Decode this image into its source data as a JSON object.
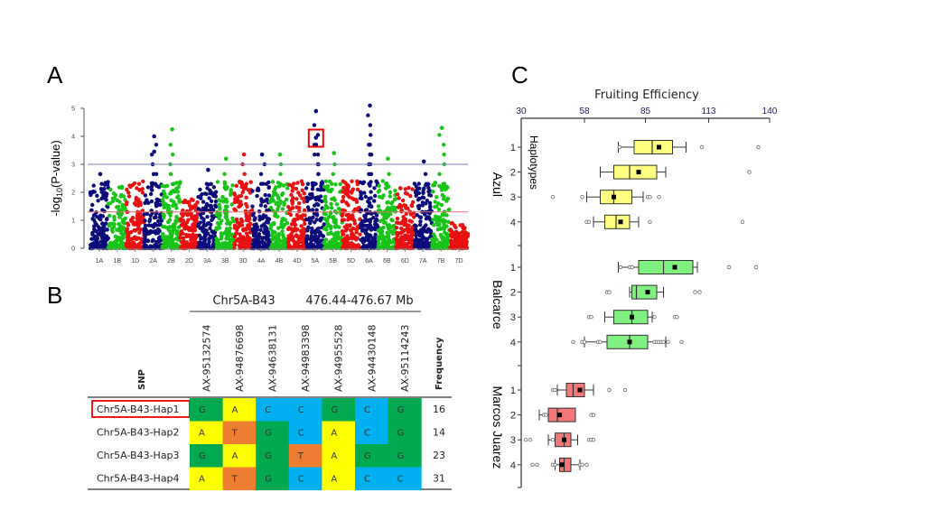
{
  "panels": {
    "a": "A",
    "b": "B",
    "c": "C"
  },
  "chart_data": [
    {
      "type": "scatter",
      "subtype": "manhattan",
      "title": "",
      "ylabel": "-log10(P-value)",
      "ylabel_main": "-log",
      "ylabel_sub": "10",
      "ylabel_rest": "(P-value)",
      "xlabel": "",
      "ylim": [
        0,
        5
      ],
      "yticks": [
        "0",
        "1",
        "2",
        "3",
        "4",
        "5"
      ],
      "categories": [
        "1A",
        "1B",
        "1D",
        "2A",
        "2B",
        "2D",
        "3A",
        "3B",
        "3D",
        "4A",
        "4B",
        "4D",
        "5A",
        "5B",
        "5D",
        "6A",
        "6B",
        "6D",
        "7A",
        "7B",
        "7D"
      ],
      "thresholds": [
        {
          "value": 3.0,
          "color": "#7f7fbf"
        },
        {
          "value": 1.3,
          "color": "#d87070"
        }
      ],
      "colors": {
        "A": "#0b0b7a",
        "B": "#19c419",
        "D": "#e81010"
      },
      "peak_max": [
        2.65,
        2.35,
        2.75,
        3.95,
        4.25,
        1.8,
        2.8,
        3.2,
        3.3,
        3.35,
        3.35,
        2.5,
        4.9,
        3.4,
        2.5,
        5.1,
        3.2,
        2.2,
        3.1,
        4.3,
        0.9
      ],
      "highlighted_point": {
        "chromosome": "5A",
        "value": 3.95
      },
      "top_points": [
        {
          "chromosome": "1A",
          "value": 2.65
        },
        {
          "chromosome": "2A",
          "value": 3.45
        },
        {
          "chromosome": "2A",
          "value": 4.0
        },
        {
          "chromosome": "2B",
          "value": 4.25
        },
        {
          "chromosome": "3A",
          "value": 2.8
        },
        {
          "chromosome": "3B",
          "value": 3.2
        },
        {
          "chromosome": "3D",
          "value": 3.35
        },
        {
          "chromosome": "4A",
          "value": 3.35
        },
        {
          "chromosome": "4B",
          "value": 3.35
        },
        {
          "chromosome": "5A",
          "value": 4.9
        },
        {
          "chromosome": "5A",
          "value": 3.95
        },
        {
          "chromosome": "5B",
          "value": 3.4
        },
        {
          "chromosome": "6A",
          "value": 5.1
        },
        {
          "chromosome": "6A",
          "value": 3.7
        },
        {
          "chromosome": "6B",
          "value": 3.2
        },
        {
          "chromosome": "7A",
          "value": 3.1
        },
        {
          "chromosome": "7B",
          "value": 4.3
        }
      ]
    },
    {
      "type": "table",
      "region_label": "Chr5A-B43",
      "region_range": "476.44-476.67 Mb",
      "row_header": "SNP",
      "freq_header": "Frequency",
      "columns": [
        "AX-95132574",
        "AX-94876698",
        "AX-94638131",
        "AX-94983398",
        "AX-94955528",
        "AX-94430148",
        "AX-95114243"
      ],
      "allele_colors": {
        "G": "#00a850",
        "A": "#ffff00",
        "C": "#00b0f0",
        "T": "#ed7d31"
      },
      "rows": [
        {
          "name": "Chr5A-B43-Hap1",
          "alleles": [
            "G",
            "A",
            "C",
            "C",
            "G",
            "C",
            "G"
          ],
          "frequency": "16",
          "highlighted": true
        },
        {
          "name": "Chr5A-B43-Hap2",
          "alleles": [
            "A",
            "T",
            "G",
            "C",
            "A",
            "C",
            "G"
          ],
          "frequency": "14",
          "highlighted": false
        },
        {
          "name": "Chr5A-B43-Hap3",
          "alleles": [
            "G",
            "A",
            "G",
            "T",
            "A",
            "G",
            "G"
          ],
          "frequency": "23",
          "highlighted": false
        },
        {
          "name": "Chr5A-B43-Hap4",
          "alleles": [
            "A",
            "T",
            "G",
            "C",
            "A",
            "C",
            "C"
          ],
          "frequency": "31",
          "highlighted": false
        }
      ]
    },
    {
      "type": "boxplot",
      "title": "Fruiting Efficiency",
      "xlabel": "Fruiting Efficiency",
      "ylabel": "Haplotypes",
      "xlim": [
        30,
        140
      ],
      "xticks": [
        "30",
        "58",
        "85",
        "113",
        "140"
      ],
      "groups": [
        {
          "name": "Azul",
          "color": "#ffff80",
          "haplotypes": [
            {
              "label": "1",
              "whisker_low": 73,
              "q1": 80,
              "median": 88,
              "q3": 97,
              "whisker_high": 103,
              "mean": 91,
              "outliers": [
                73.5,
                110,
                135
              ]
            },
            {
              "label": "2",
              "whisker_low": 65,
              "q1": 71,
              "median": 78,
              "q3": 90,
              "whisker_high": 94,
              "mean": 82,
              "outliers": [
                131
              ]
            },
            {
              "label": "3",
              "whisker_low": 59,
              "q1": 65,
              "median": 71,
              "q3": 79,
              "whisker_high": 84,
              "mean": 71,
              "outliers": [
                44,
                57,
                86,
                87,
                91
              ]
            },
            {
              "label": "4",
              "whisker_low": 62,
              "q1": 67,
              "median": 72,
              "q3": 78,
              "whisker_high": 82,
              "mean": 74,
              "outliers": [
                59,
                60,
                87,
                128
              ]
            }
          ]
        },
        {
          "name": "Balcarce",
          "color": "#80f080",
          "haplotypes": [
            {
              "label": "1",
              "whisker_low": 73,
              "q1": 82,
              "median": 93,
              "q3": 106,
              "whisker_high": 108,
              "mean": 98,
              "outliers": [
                74,
                78,
                79,
                122,
                134
              ]
            },
            {
              "label": "2",
              "whisker_low": 78,
              "q1": 79,
              "median": 81,
              "q3": 90,
              "whisker_high": 93,
              "mean": 86,
              "outliers": [
                68,
                69,
                107,
                109
              ]
            },
            {
              "label": "3",
              "whisker_low": 67,
              "q1": 71,
              "median": 79,
              "q3": 86,
              "whisker_high": 88,
              "mean": 79,
              "outliers": [
                60,
                61,
                89,
                98,
                99
              ]
            },
            {
              "label": "4",
              "whisker_low": 58,
              "q1": 68,
              "median": 78,
              "q3": 86,
              "whisker_high": 94,
              "mean": 78,
              "outliers": [
                53,
                57,
                58,
                64,
                65,
                89,
                90,
                91,
                92,
                93,
                95,
                101
              ]
            }
          ]
        },
        {
          "name": "Marcos Juarez",
          "color": "#f07878",
          "haplotypes": [
            {
              "label": "1",
              "whisker_low": 46,
              "q1": 50,
              "median": 53,
              "q3": 58,
              "whisker_high": 62,
              "mean": 56,
              "outliers": [
                44,
                45,
                69,
                76
              ]
            },
            {
              "label": "2",
              "whisker_low": 38,
              "q1": 42,
              "median": 46,
              "q3": 54,
              "whisker_high": 54,
              "mean": 47,
              "outliers": [
                40,
                41,
                61,
                62
              ]
            },
            {
              "label": "3",
              "whisker_low": 42,
              "q1": 45,
              "median": 49,
              "q3": 52,
              "whisker_high": 55,
              "mean": 49,
              "outliers": [
                32,
                34,
                44,
                60,
                61,
                62
              ]
            },
            {
              "label": "4",
              "whisker_low": 45,
              "q1": 47,
              "median": 49,
              "q3": 52,
              "whisker_high": 56,
              "mean": 48,
              "outliers": [
                35,
                37,
                44,
                45,
                56,
                57,
                59
              ]
            }
          ]
        }
      ]
    }
  ]
}
